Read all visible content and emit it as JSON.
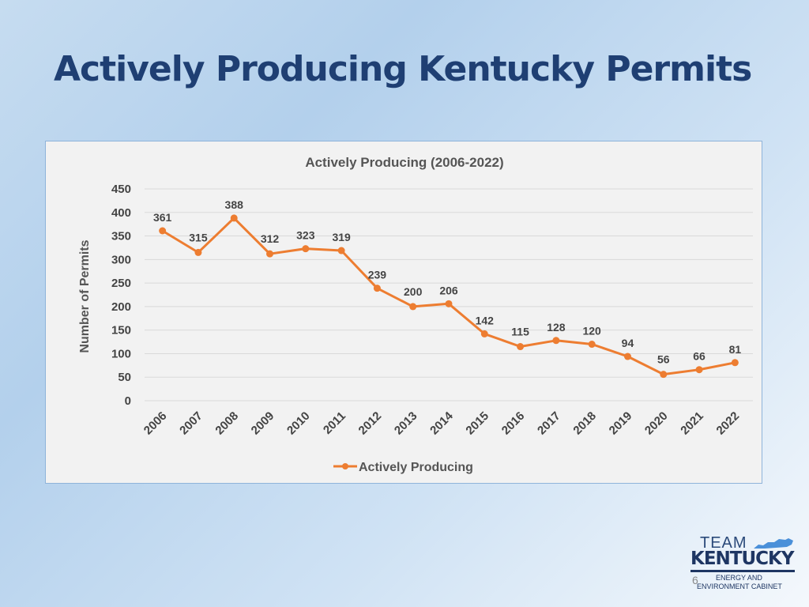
{
  "slide": {
    "title": "Actively Producing Kentucky Permits",
    "page_number": "6"
  },
  "logo": {
    "line1": "TEAM",
    "line2": "KENTUCKY",
    "line3": "ENERGY AND",
    "line4": "ENVIRONMENT CABINET"
  },
  "colors": {
    "series": "#ed7d31",
    "title": "#1f3f73"
  },
  "chart_data": {
    "type": "line",
    "title": "Actively Producing (2006-2022)",
    "xlabel": "",
    "ylabel": "Number of Permits",
    "ylim": [
      0,
      450
    ],
    "yticks": [
      0,
      50,
      100,
      150,
      200,
      250,
      300,
      350,
      400,
      450
    ],
    "categories": [
      "2006",
      "2007",
      "2008",
      "2009",
      "2010",
      "2011",
      "2012",
      "2013",
      "2014",
      "2015",
      "2016",
      "2017",
      "2018",
      "2019",
      "2020",
      "2021",
      "2022"
    ],
    "series": [
      {
        "name": "Actively Producing",
        "values": [
          361,
          315,
          388,
          312,
          323,
          319,
          239,
          200,
          206,
          142,
          115,
          128,
          120,
          94,
          56,
          66,
          81
        ]
      }
    ],
    "grid": true,
    "legend": "bottom",
    "data_labels": true
  }
}
